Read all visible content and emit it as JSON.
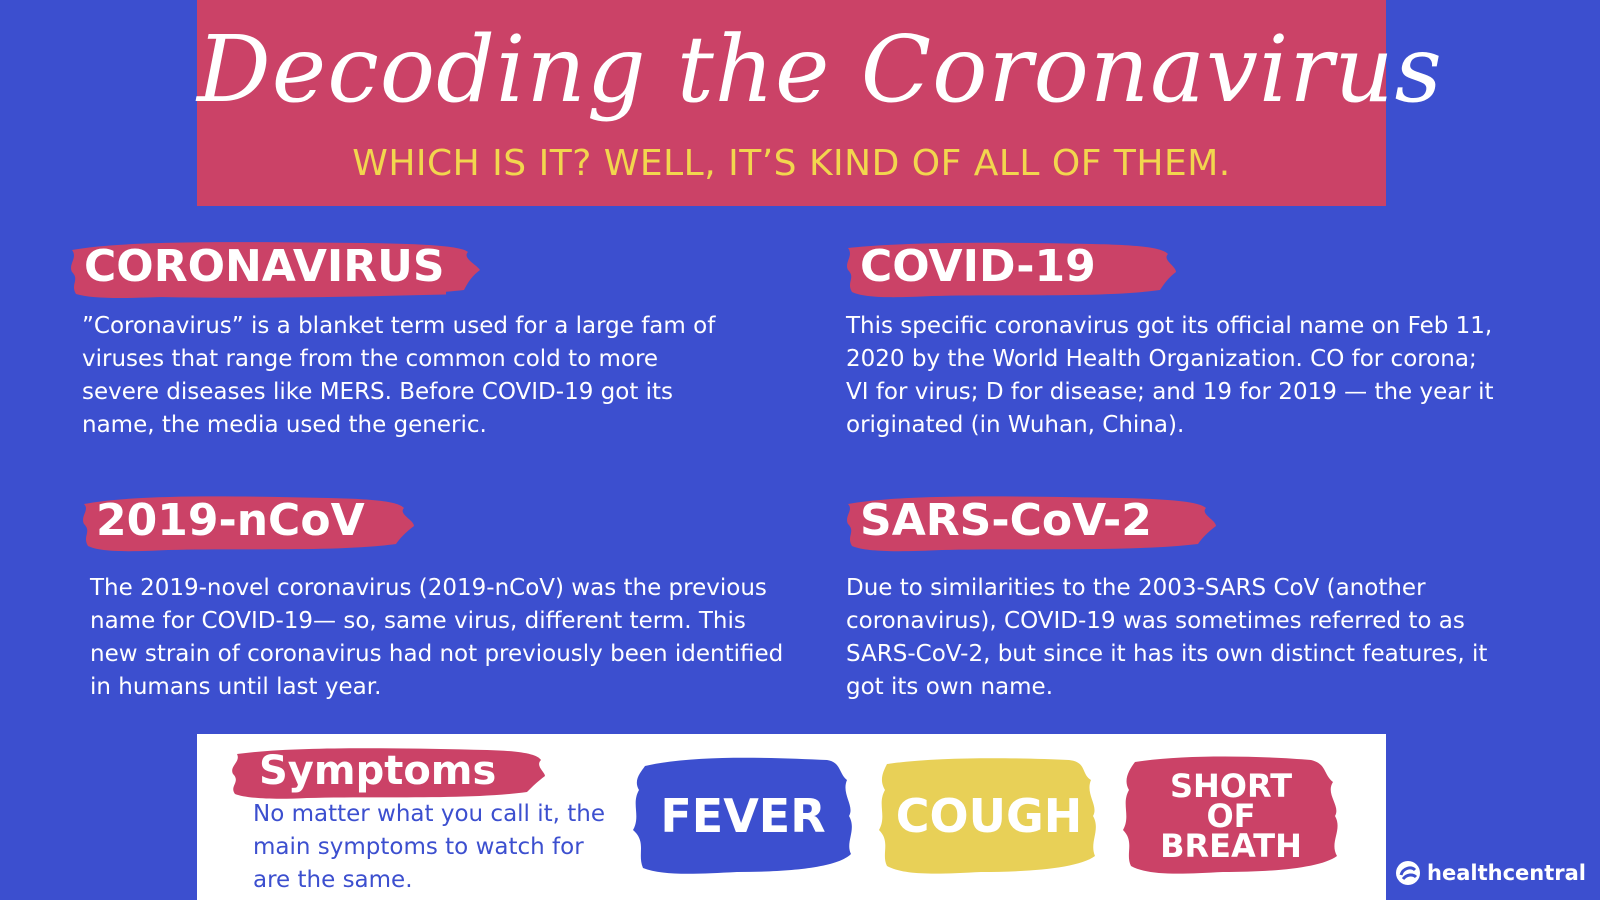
{
  "header": {
    "title": "Decoding the Coronavirus",
    "subtitle": "WHICH IS IT? WELL, IT’S KIND OF ALL OF THEM."
  },
  "sections": [
    {
      "heading": "CORONAVIRUS",
      "text": "”Coronavirus” is a blanket term used for a large fam of viruses that range from the common cold to more severe diseases like MERS. Before COVID-19 got its name, the media used the generic."
    },
    {
      "heading": "COVID-19",
      "text": "This specific coronavirus got its official name on Feb 11, 2020 by the World Health Organization. CO for corona; VI for virus; D for disease; and 19 for 2019 — the year it originated (in Wuhan, China)."
    },
    {
      "heading": "2019-nCoV",
      "text": "The 2019-novel coronavirus (2019-nCoV) was the previous name for COVID-19— so, same virus, different term. This new strain of coronavirus had not previously been identified in humans until last year."
    },
    {
      "heading": "SARS-CoV-2",
      "text": "Due to similarities to the 2003-SARS CoV (another coronavirus), COVID-19 was sometimes referred to as SARS-CoV-2, but since it has its own distinct features, it got its own name."
    }
  ],
  "symptoms": {
    "heading": "Symptoms",
    "text": "No matter what you call it, the main symptoms to watch for are the same.",
    "items": [
      {
        "label": "FEVER",
        "color": "#3c4fcf"
      },
      {
        "label": "COUGH",
        "color": "#e8d057"
      },
      {
        "label_lines": [
          "SHORT",
          "OF",
          "BREATH"
        ],
        "color": "#cb4267"
      }
    ]
  },
  "brand": {
    "name": "healthcentral",
    "icon": "healthcentral-logo-icon"
  },
  "colors": {
    "background": "#3c4fcf",
    "pink": "#cb4267",
    "yellow": "#f2d64e",
    "white": "#ffffff"
  }
}
